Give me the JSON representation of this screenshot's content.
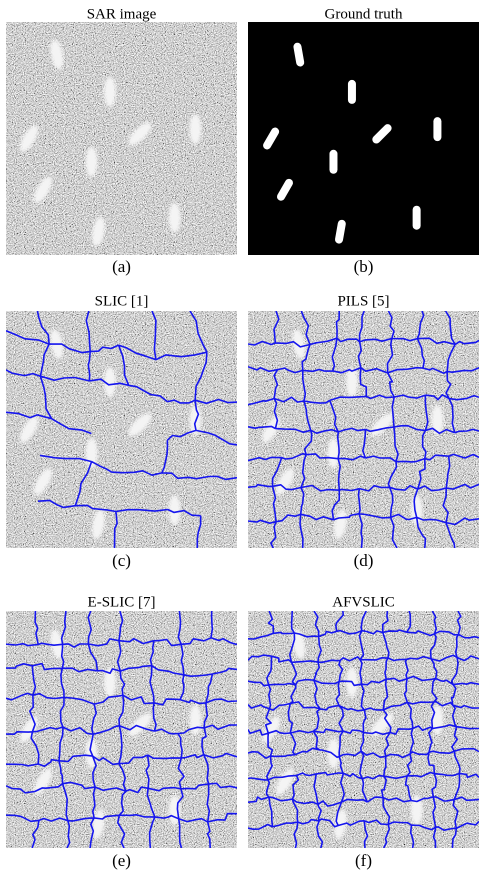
{
  "panels": [
    {
      "title": "SAR image",
      "caption": "(a)"
    },
    {
      "title": "Ground truth",
      "caption": "(b)"
    },
    {
      "title": "SLIC [1]",
      "caption": "(c)"
    },
    {
      "title": "PILS [5]",
      "caption": "(d)"
    },
    {
      "title": "E-SLIC [7]",
      "caption": "(e)"
    },
    {
      "title": "AFVSLIC",
      "caption": "(f)"
    }
  ]
}
